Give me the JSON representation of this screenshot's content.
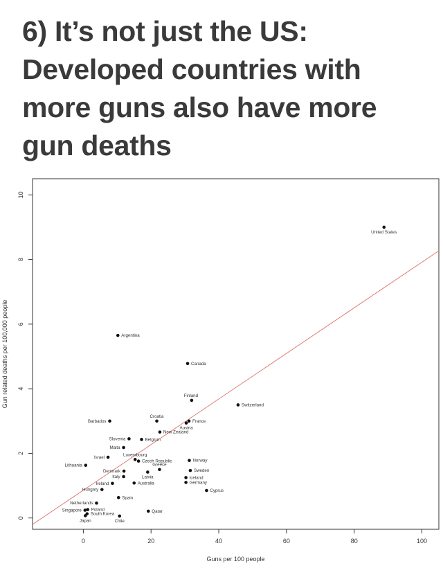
{
  "headline": {
    "lines": [
      "6) It’s not just the US:",
      "Developed countries with",
      "more guns also have more",
      "gun deaths"
    ]
  },
  "chart_data": {
    "type": "scatter",
    "title": "",
    "xlabel": "Guns per 100 people",
    "ylabel": "Gun related deaths per 100,000 people",
    "xlim": [
      -15,
      105
    ],
    "ylim": [
      -0.35,
      10.5
    ],
    "xticks": [
      0,
      20,
      40,
      60,
      80,
      100
    ],
    "yticks": [
      0,
      2,
      4,
      6,
      8,
      10
    ],
    "grid": false,
    "colors": {
      "points": "#111111",
      "trend_line": "#e07b7b",
      "frame": "#333333"
    },
    "trend_line": {
      "x": [
        -15,
        105
      ],
      "y": [
        -0.2,
        8.27
      ]
    },
    "points": [
      {
        "label": "United States",
        "x": 88.8,
        "y": 9.0,
        "label_pos": "below"
      },
      {
        "label": "Argentina",
        "x": 10.2,
        "y": 5.65,
        "label_pos": "right"
      },
      {
        "label": "Canada",
        "x": 30.8,
        "y": 4.78,
        "label_pos": "right"
      },
      {
        "label": "Finland",
        "x": 32.0,
        "y": 3.64,
        "label_pos": "above-left"
      },
      {
        "label": "Switzerland",
        "x": 45.7,
        "y": 3.5,
        "label_pos": "right"
      },
      {
        "label": "Barbados",
        "x": 7.8,
        "y": 3.0,
        "label_pos": "left"
      },
      {
        "label": "Croatia",
        "x": 21.7,
        "y": 3.0,
        "label_pos": "above"
      },
      {
        "label": "France",
        "x": 31.2,
        "y": 3.0,
        "label_pos": "right"
      },
      {
        "label": "Austria",
        "x": 30.4,
        "y": 2.94,
        "label_pos": "below"
      },
      {
        "label": "New Zealand",
        "x": 22.6,
        "y": 2.66,
        "label_pos": "right"
      },
      {
        "label": "Slovenia",
        "x": 13.5,
        "y": 2.45,
        "label_pos": "left"
      },
      {
        "label": "Belgium",
        "x": 17.2,
        "y": 2.43,
        "label_pos": "right"
      },
      {
        "label": "Malta",
        "x": 11.9,
        "y": 2.18,
        "label_pos": "left"
      },
      {
        "label": "Israel",
        "x": 7.3,
        "y": 1.88,
        "label_pos": "left"
      },
      {
        "label": "Luxembourg",
        "x": 15.3,
        "y": 1.81,
        "label_pos": "above"
      },
      {
        "label": "Czech Republic",
        "x": 16.3,
        "y": 1.76,
        "label_pos": "right"
      },
      {
        "label": "Norway",
        "x": 31.3,
        "y": 1.78,
        "label_pos": "right"
      },
      {
        "label": "Lithuania",
        "x": 0.7,
        "y": 1.63,
        "label_pos": "left"
      },
      {
        "label": "Greece",
        "x": 22.5,
        "y": 1.5,
        "label_pos": "above"
      },
      {
        "label": "Denmark",
        "x": 12.0,
        "y": 1.45,
        "label_pos": "left"
      },
      {
        "label": "Sweden",
        "x": 31.6,
        "y": 1.47,
        "label_pos": "right"
      },
      {
        "label": "Italy",
        "x": 11.9,
        "y": 1.28,
        "label_pos": "left"
      },
      {
        "label": "Latvia",
        "x": 19.0,
        "y": 1.42,
        "label_pos": "below"
      },
      {
        "label": "Iceland",
        "x": 30.3,
        "y": 1.25,
        "label_pos": "right"
      },
      {
        "label": "Germany",
        "x": 30.3,
        "y": 1.1,
        "label_pos": "right"
      },
      {
        "label": "Ireland",
        "x": 8.6,
        "y": 1.07,
        "label_pos": "left"
      },
      {
        "label": "Australia",
        "x": 15.0,
        "y": 1.08,
        "label_pos": "right"
      },
      {
        "label": "Cyprus",
        "x": 36.4,
        "y": 0.85,
        "label_pos": "right"
      },
      {
        "label": "Hungary",
        "x": 5.5,
        "y": 0.88,
        "label_pos": "left"
      },
      {
        "label": "Spain",
        "x": 10.4,
        "y": 0.63,
        "label_pos": "right"
      },
      {
        "label": "Netherlands",
        "x": 3.9,
        "y": 0.46,
        "label_pos": "left"
      },
      {
        "label": "Singapore",
        "x": 0.5,
        "y": 0.24,
        "label_pos": "left"
      },
      {
        "label": "Poland",
        "x": 1.3,
        "y": 0.26,
        "label_pos": "right"
      },
      {
        "label": "Qatar",
        "x": 19.2,
        "y": 0.21,
        "label_pos": "right"
      },
      {
        "label": "South Korea",
        "x": 1.1,
        "y": 0.13,
        "label_pos": "right"
      },
      {
        "label": "Japan",
        "x": 0.6,
        "y": 0.07,
        "label_pos": "below"
      },
      {
        "label": "Chile",
        "x": 10.7,
        "y": 0.06,
        "label_pos": "below"
      }
    ]
  }
}
